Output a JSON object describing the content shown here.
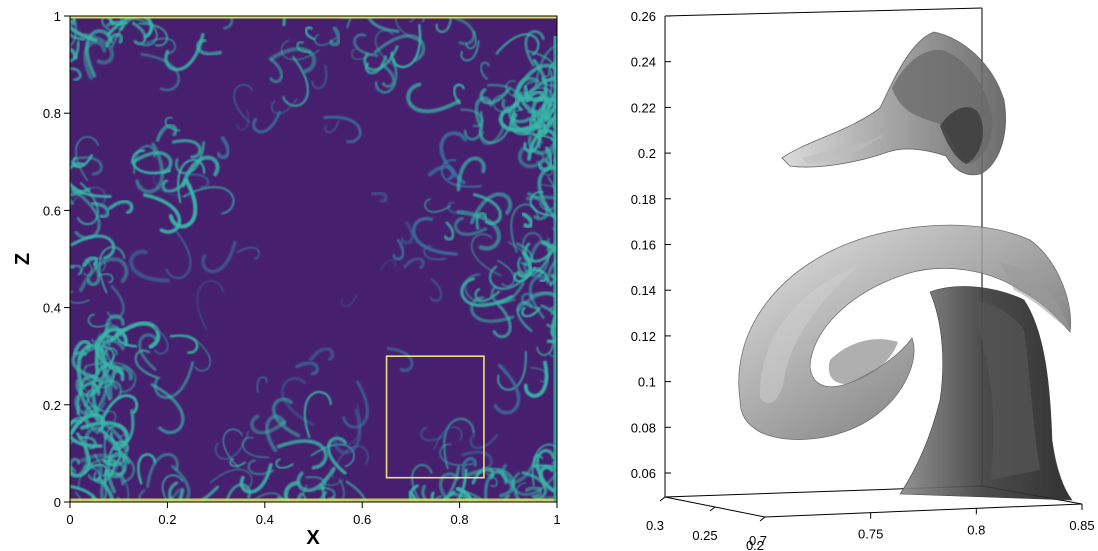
{
  "chart_data": [
    {
      "type": "heatmap",
      "xlabel": "X",
      "ylabel": "Z",
      "xlim": [
        0,
        1
      ],
      "ylim": [
        0,
        1
      ],
      "x_ticks": [
        "0",
        "0.2",
        "0.4",
        "0.6",
        "0.8",
        "1"
      ],
      "y_ticks": [
        "0",
        "0.2",
        "0.4",
        "0.6",
        "0.8",
        "1"
      ],
      "highlight_box": {
        "x": [
          0.65,
          0.85
        ],
        "z": [
          0.05,
          0.3
        ],
        "color": "#e8e07a"
      },
      "colors": {
        "background": "#46206f",
        "filament": "#38b7a8",
        "peak": "#d8e35a"
      }
    },
    {
      "type": "3d-isosurface",
      "z_ticks": [
        "0.26",
        "0.24",
        "0.22",
        "0.2",
        "0.18",
        "0.16",
        "0.14",
        "0.12",
        "0.1",
        "0.08",
        "0.06"
      ],
      "x_ticks": [
        "0.75",
        "0.8",
        "0.85"
      ],
      "depth_ticks": [
        "0.3",
        "0.25",
        "0.2"
      ],
      "x_corner_tick": "0.7",
      "zlim": [
        0.05,
        0.26
      ],
      "xlim": [
        0.7,
        0.85
      ],
      "surface_color": "#808080"
    }
  ]
}
